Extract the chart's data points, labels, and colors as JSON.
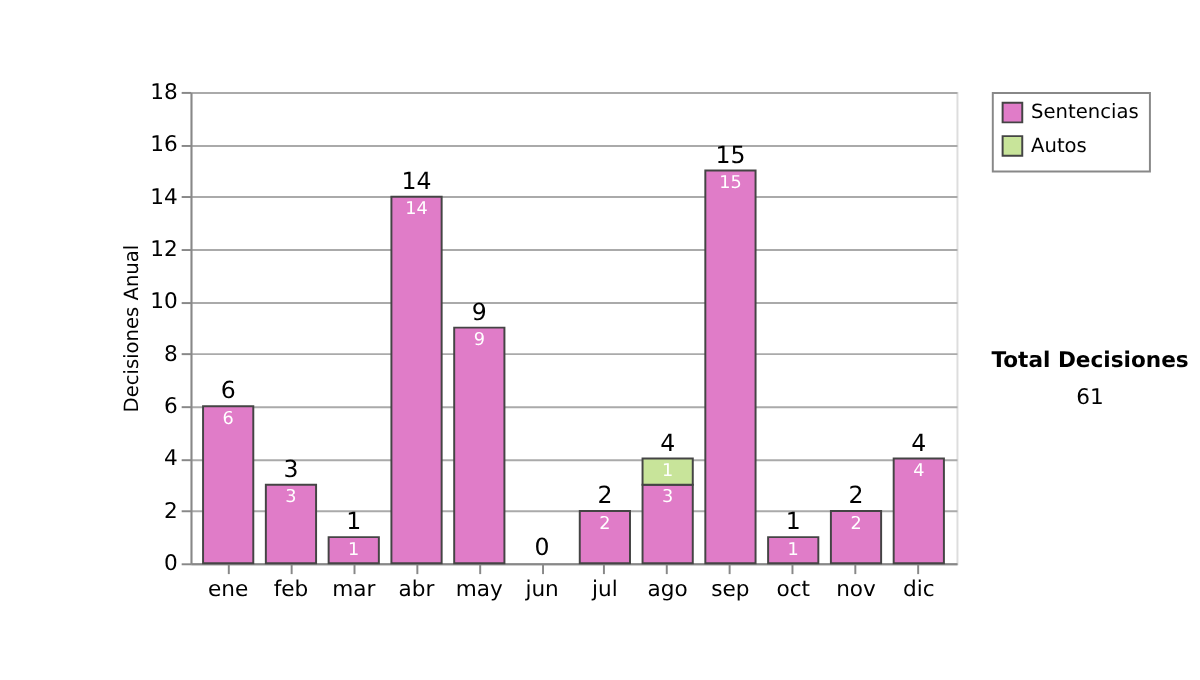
{
  "chart_data": {
    "type": "bar",
    "stacked": true,
    "ylabel": "Decisiones Anual",
    "categories": [
      "ene",
      "feb",
      "mar",
      "abr",
      "may",
      "jun",
      "jul",
      "ago",
      "sep",
      "oct",
      "nov",
      "dic"
    ],
    "series": [
      {
        "name": "Sentencias",
        "color": "#e07cc8",
        "values": [
          6,
          3,
          1,
          14,
          9,
          0,
          2,
          3,
          15,
          1,
          2,
          4
        ],
        "value_labels": [
          "6",
          "3",
          "1",
          "14",
          "9",
          null,
          "2",
          "3",
          "15",
          "1",
          "2",
          "4"
        ]
      },
      {
        "name": "Autos",
        "color": "#c8e49a",
        "values": [
          0,
          0,
          0,
          0,
          0,
          0,
          0,
          1,
          0,
          0,
          0,
          0
        ],
        "value_labels": [
          null,
          null,
          null,
          null,
          null,
          null,
          null,
          "1",
          null,
          null,
          null,
          null
        ]
      }
    ],
    "totals": [
      "6",
      "3",
      "1",
      "14",
      "9",
      "0",
      "2",
      "4",
      "15",
      "1",
      "2",
      "4"
    ],
    "ylim": [
      0,
      18
    ],
    "yticks": [
      0,
      2,
      4,
      6,
      8,
      10,
      12,
      14,
      16,
      18
    ],
    "grid": "y",
    "legend": "right",
    "annotations": [
      "Total Decisiones",
      "61"
    ]
  }
}
